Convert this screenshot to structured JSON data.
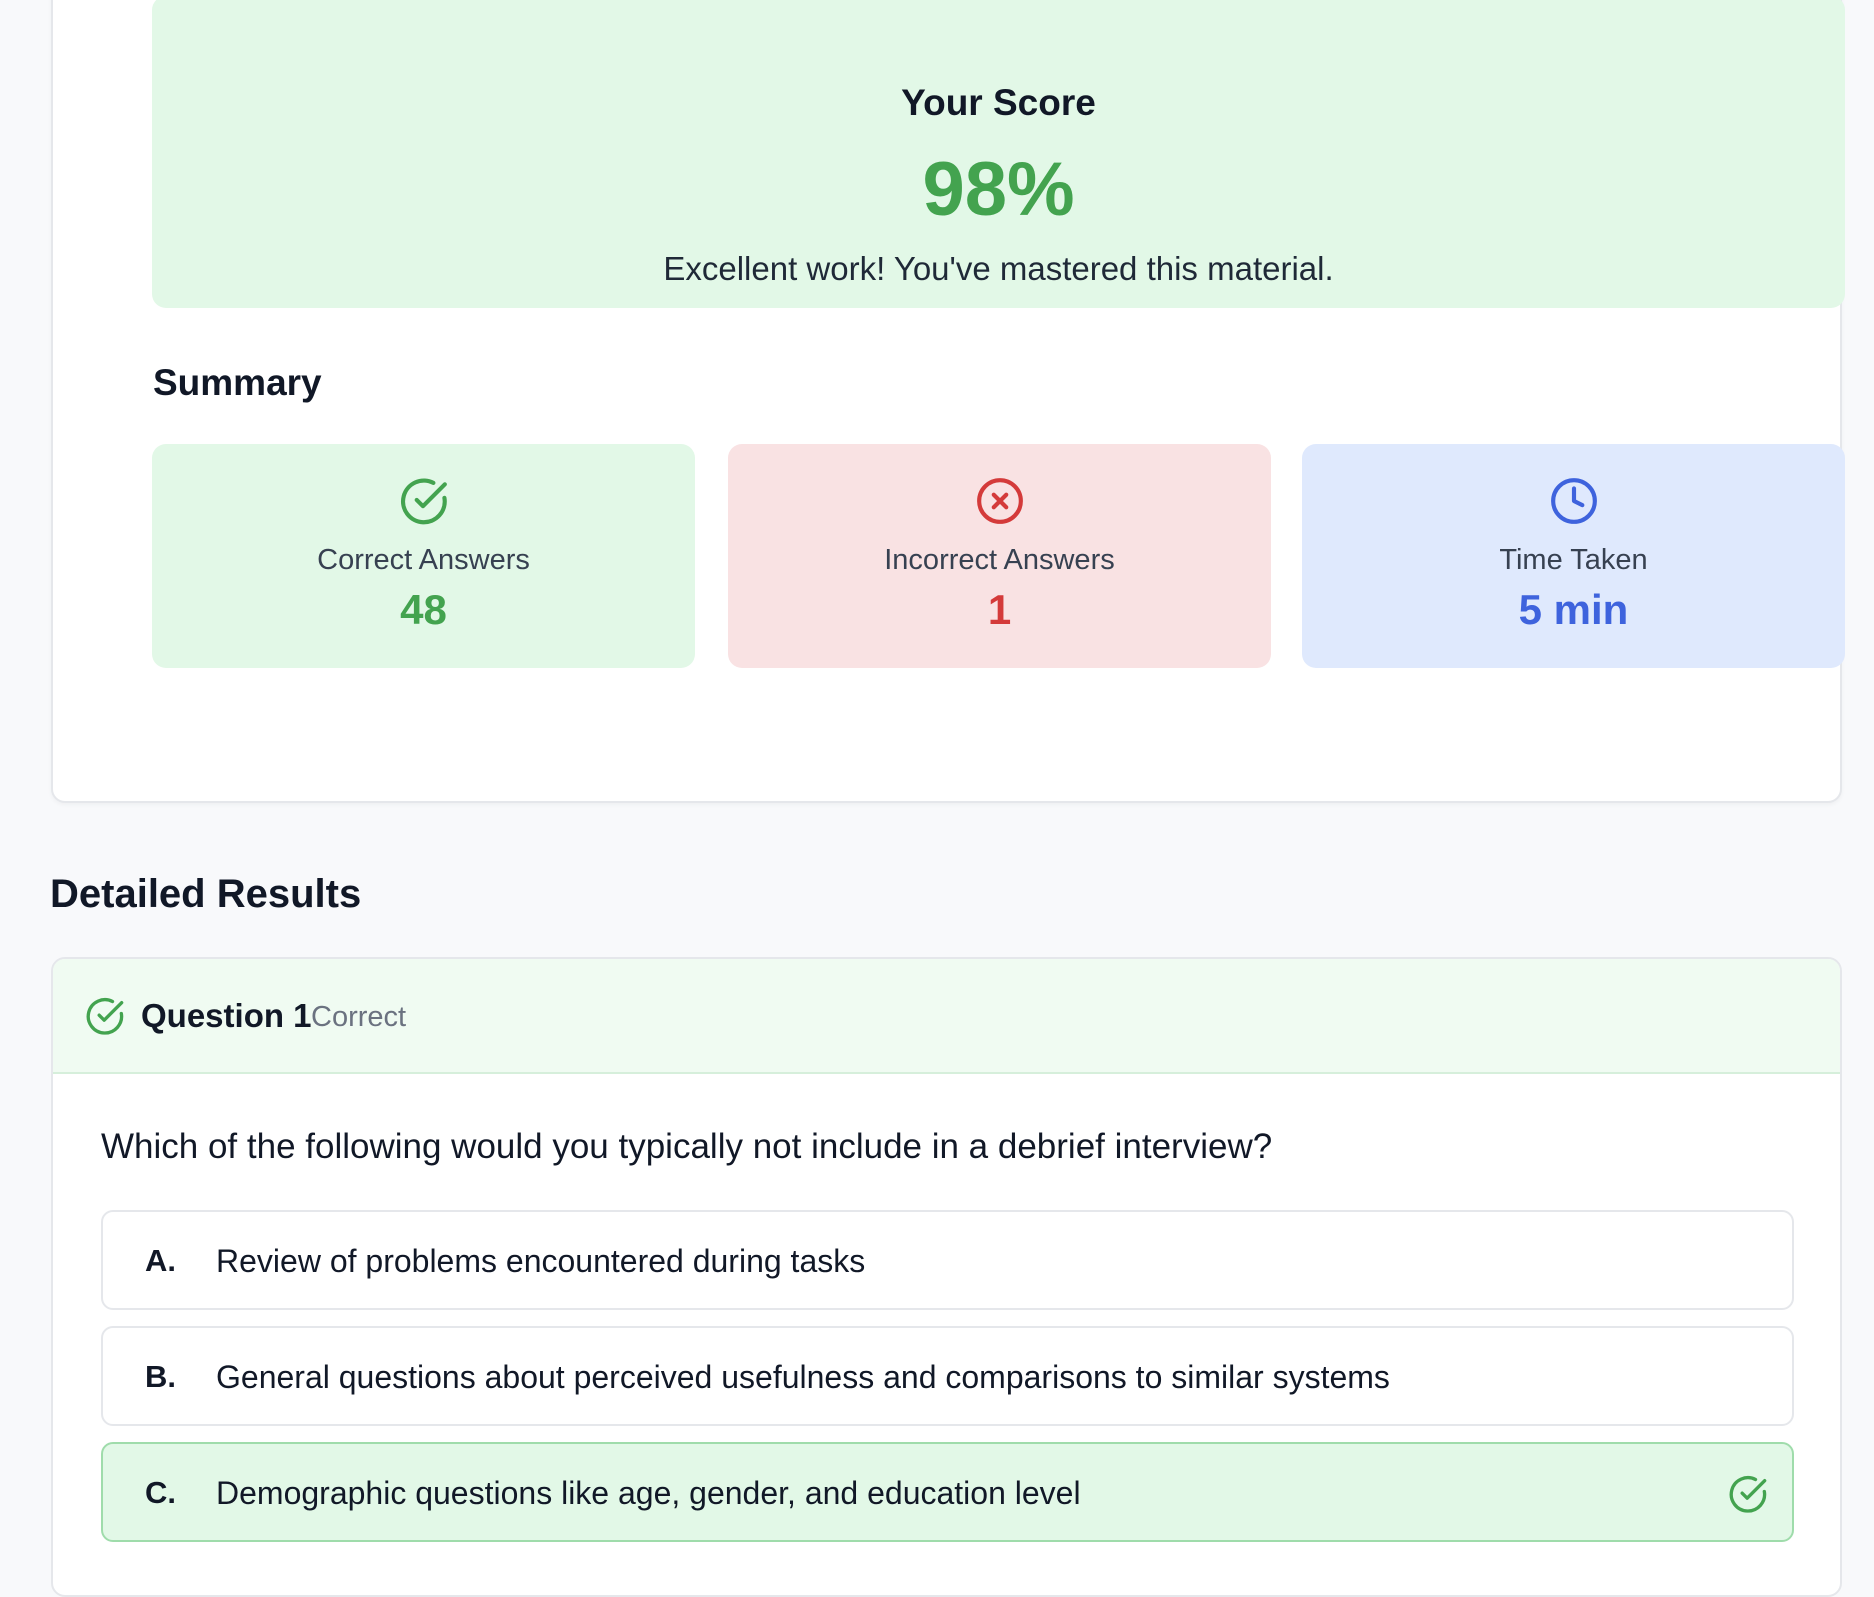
{
  "score": {
    "title": "Your Score",
    "value": "98%",
    "message": "Excellent work! You've mastered this material."
  },
  "summary": {
    "heading": "Summary",
    "correct": {
      "label": "Correct Answers",
      "value": "48",
      "icon": "check-circle-icon",
      "color": "#43a34f"
    },
    "incorrect": {
      "label": "Incorrect Answers",
      "value": "1",
      "icon": "x-circle-icon",
      "color": "#d43a3a"
    },
    "time": {
      "label": "Time Taken",
      "value": "5 min",
      "icon": "clock-icon",
      "color": "#3e63dd"
    }
  },
  "detailed": {
    "heading": "Detailed Results",
    "questions": [
      {
        "number": "Question 1",
        "status": "Correct",
        "text": "Which of the following would you typically not include in a debrief interview?",
        "options": [
          {
            "letter": "A.",
            "text": "Review of problems encountered during tasks"
          },
          {
            "letter": "B.",
            "text": "General questions about perceived usefulness and comparisons to similar systems"
          },
          {
            "letter": "C.",
            "text": "Demographic questions like age, gender, and education level",
            "correct": true
          }
        ]
      }
    ]
  },
  "colors": {
    "success_bg": "#e2f8e7",
    "error_bg": "#f9e2e3",
    "info_bg": "#dfe9fd"
  }
}
